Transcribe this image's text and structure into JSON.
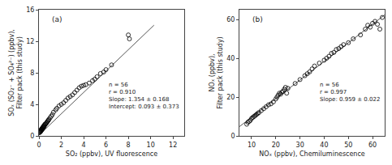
{
  "chart_data": [
    {
      "type": "scatter",
      "xlabel": "SO₂ (ppbv), UV fluorescence",
      "ylabel": "SOₓ (SO₂⁻ + SO₄²⁻) (ppbv),\nFilter pack (this study)",
      "label": "(a)",
      "annotation": "n = 56\nr = 0.910\nSlope: 1.354 ± 0.168\nIntercept: 0.093 ± 0.373",
      "xlim": [
        0,
        13
      ],
      "ylim": [
        0,
        16
      ],
      "xticks": [
        0,
        2,
        4,
        6,
        8,
        10,
        12
      ],
      "yticks": [
        0,
        4,
        8,
        12,
        16
      ],
      "grid": false,
      "series": [
        {
          "type": "line",
          "color": "#555555",
          "line_style": "solid",
          "x": [
            0,
            10.3
          ],
          "values": [
            0.093,
            14.0392
          ]
        },
        {
          "type": "scatter",
          "marker": "open circle",
          "color": "#000000",
          "x": [
            0.05,
            0.08,
            0.1,
            0.12,
            0.15,
            0.18,
            0.2,
            0.22,
            0.25,
            0.28,
            0.3,
            0.32,
            0.35,
            0.38,
            0.4,
            0.42,
            0.45,
            0.48,
            0.5,
            0.55,
            0.6,
            0.65,
            0.7,
            0.75,
            0.8,
            0.85,
            0.9,
            1.0,
            1.1,
            1.2,
            1.3,
            1.5,
            1.6,
            1.8,
            2.0,
            2.2,
            2.4,
            2.6,
            2.8,
            3.0,
            3.2,
            3.4,
            3.6,
            3.8,
            4.0,
            4.2,
            4.5,
            4.8,
            5.0,
            5.2,
            5.5,
            5.8,
            6.0,
            6.5,
            8.0,
            8.1
          ],
          "values": [
            0.4,
            0.5,
            0.6,
            0.5,
            0.7,
            0.6,
            0.8,
            0.7,
            0.9,
            0.8,
            1.0,
            0.9,
            1.1,
            1.0,
            1.2,
            1.1,
            1.3,
            1.2,
            1.4,
            1.5,
            1.5,
            1.6,
            1.7,
            1.8,
            1.9,
            2.0,
            2.1,
            2.3,
            2.5,
            2.7,
            3.0,
            3.3,
            3.5,
            3.8,
            4.0,
            4.2,
            4.5,
            4.8,
            5.0,
            5.2,
            5.5,
            5.8,
            6.1,
            6.3,
            6.4,
            6.5,
            6.7,
            7.0,
            7.2,
            7.5,
            7.9,
            8.1,
            8.4,
            9.0,
            12.8,
            12.3
          ]
        }
      ]
    },
    {
      "type": "scatter",
      "xlabel": "NOₓ (ppbv), Chemiluminescence",
      "ylabel": "NOₓ (ppbv),\nFilter pack (this study)",
      "label": "(b)",
      "annotation": "n = 56\nr = 0.997\nSlope: 0.959 ± 0.022",
      "xlim": [
        5,
        65
      ],
      "ylim": [
        0,
        65
      ],
      "xticks": [
        10,
        20,
        30,
        40,
        50,
        60
      ],
      "yticks": [
        0,
        20,
        40,
        60
      ],
      "grid": false,
      "series": [
        {
          "type": "line",
          "color": "#555555",
          "line_style": "solid",
          "x": [
            5,
            65
          ],
          "values": [
            4.795,
            62.335
          ]
        },
        {
          "type": "scatter",
          "marker": "open circle",
          "color": "#000000",
          "x": [
            8.0,
            8.5,
            9.0,
            9.5,
            10.0,
            10.5,
            11.0,
            11.5,
            12.0,
            12.5,
            13.0,
            14.0,
            15.0,
            16.0,
            17.0,
            18.0,
            19.0,
            20.0,
            20.5,
            21.0,
            21.5,
            22.0,
            22.5,
            23.0,
            23.5,
            24.0,
            24.5,
            25.0,
            28.0,
            30.0,
            32.0,
            33.0,
            34.0,
            35.0,
            36.0,
            38.0,
            40.0,
            41.0,
            42.0,
            43.0,
            44.0,
            45.0,
            46.0,
            47.0,
            48.0,
            50.0,
            52.0,
            55.0,
            57.0,
            58.0,
            59.0,
            60.0,
            61.0,
            62.0,
            63.0,
            64.0
          ],
          "values": [
            6.0,
            7.0,
            7.5,
            8.0,
            9.0,
            9.5,
            10.0,
            10.5,
            11.0,
            11.5,
            12.0,
            13.0,
            14.0,
            15.0,
            16.0,
            16.5,
            17.5,
            19.0,
            20.0,
            21.0,
            22.0,
            21.5,
            22.5,
            23.0,
            24.0,
            25.0,
            22.0,
            24.5,
            27.0,
            29.0,
            31.0,
            32.0,
            33.0,
            34.5,
            36.0,
            37.5,
            39.0,
            40.0,
            41.0,
            42.5,
            43.0,
            44.5,
            45.0,
            46.0,
            47.0,
            48.0,
            50.0,
            52.0,
            55.0,
            57.0,
            56.0,
            58.0,
            59.0,
            57.5,
            55.0,
            61.0
          ]
        }
      ]
    }
  ]
}
